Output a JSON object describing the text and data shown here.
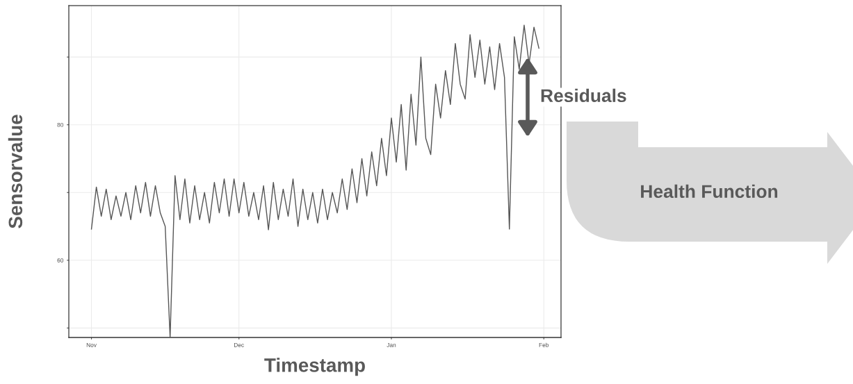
{
  "chart_data": {
    "type": "line",
    "xlabel": "Timestamp",
    "ylabel": "Sensorvalue",
    "categories": [
      "Nov",
      null,
      null,
      null,
      null,
      null,
      null,
      null,
      null,
      null,
      null,
      null,
      null,
      null,
      null,
      null,
      null,
      null,
      null,
      null,
      null,
      null,
      null,
      null,
      null,
      null,
      null,
      null,
      null,
      null,
      "Dec",
      null,
      null,
      null,
      null,
      null,
      null,
      null,
      null,
      null,
      null,
      null,
      null,
      null,
      null,
      null,
      null,
      null,
      null,
      null,
      null,
      null,
      null,
      null,
      null,
      null,
      null,
      null,
      null,
      null,
      null,
      "Jan",
      null,
      null,
      null,
      null,
      null,
      null,
      null,
      null,
      null,
      null,
      null,
      null,
      null,
      null,
      null,
      null,
      null,
      null,
      null,
      null,
      null,
      null,
      null,
      null,
      null,
      null,
      null,
      null,
      null,
      null,
      "Feb"
    ],
    "series": [
      {
        "color": "#555555",
        "values": [
          64.6,
          70.8,
          66.5,
          70.5,
          66,
          69.5,
          66.5,
          70,
          66,
          71,
          67,
          71.5,
          66.5,
          71,
          67,
          65,
          48.6,
          72.5,
          66,
          72,
          65.5,
          71,
          66,
          70,
          65.5,
          71.5,
          67,
          72,
          66.5,
          72,
          67,
          71.5,
          66.5,
          70,
          66,
          71,
          64.5,
          71.5,
          66,
          70.5,
          66.5,
          72,
          65,
          70.5,
          66,
          70,
          65.5,
          70.5,
          66,
          70,
          67,
          72,
          67.5,
          73.5,
          68.5,
          75,
          69.5,
          76,
          71,
          78,
          72.5,
          81,
          74.5,
          83,
          73.3,
          84.5,
          77,
          90,
          78,
          75.6,
          86,
          81,
          88,
          83,
          92,
          86,
          83.8,
          93.3,
          87,
          92.5,
          86,
          91.5,
          85.2,
          92,
          87,
          64.6,
          93,
          88.2,
          94.7,
          89,
          94.4,
          91.3,
          null
        ]
      }
    ],
    "ylim": [
      48.6,
      97.6
    ],
    "yticks": [
      {
        "value": 50,
        "label": null
      },
      60,
      {
        "value": 70,
        "label": null
      },
      80,
      {
        "value": 90,
        "label": null
      }
    ],
    "grid": true,
    "line_style": "solid",
    "marker": "none",
    "annotations": [
      "Residuals",
      "Health Function"
    ]
  }
}
